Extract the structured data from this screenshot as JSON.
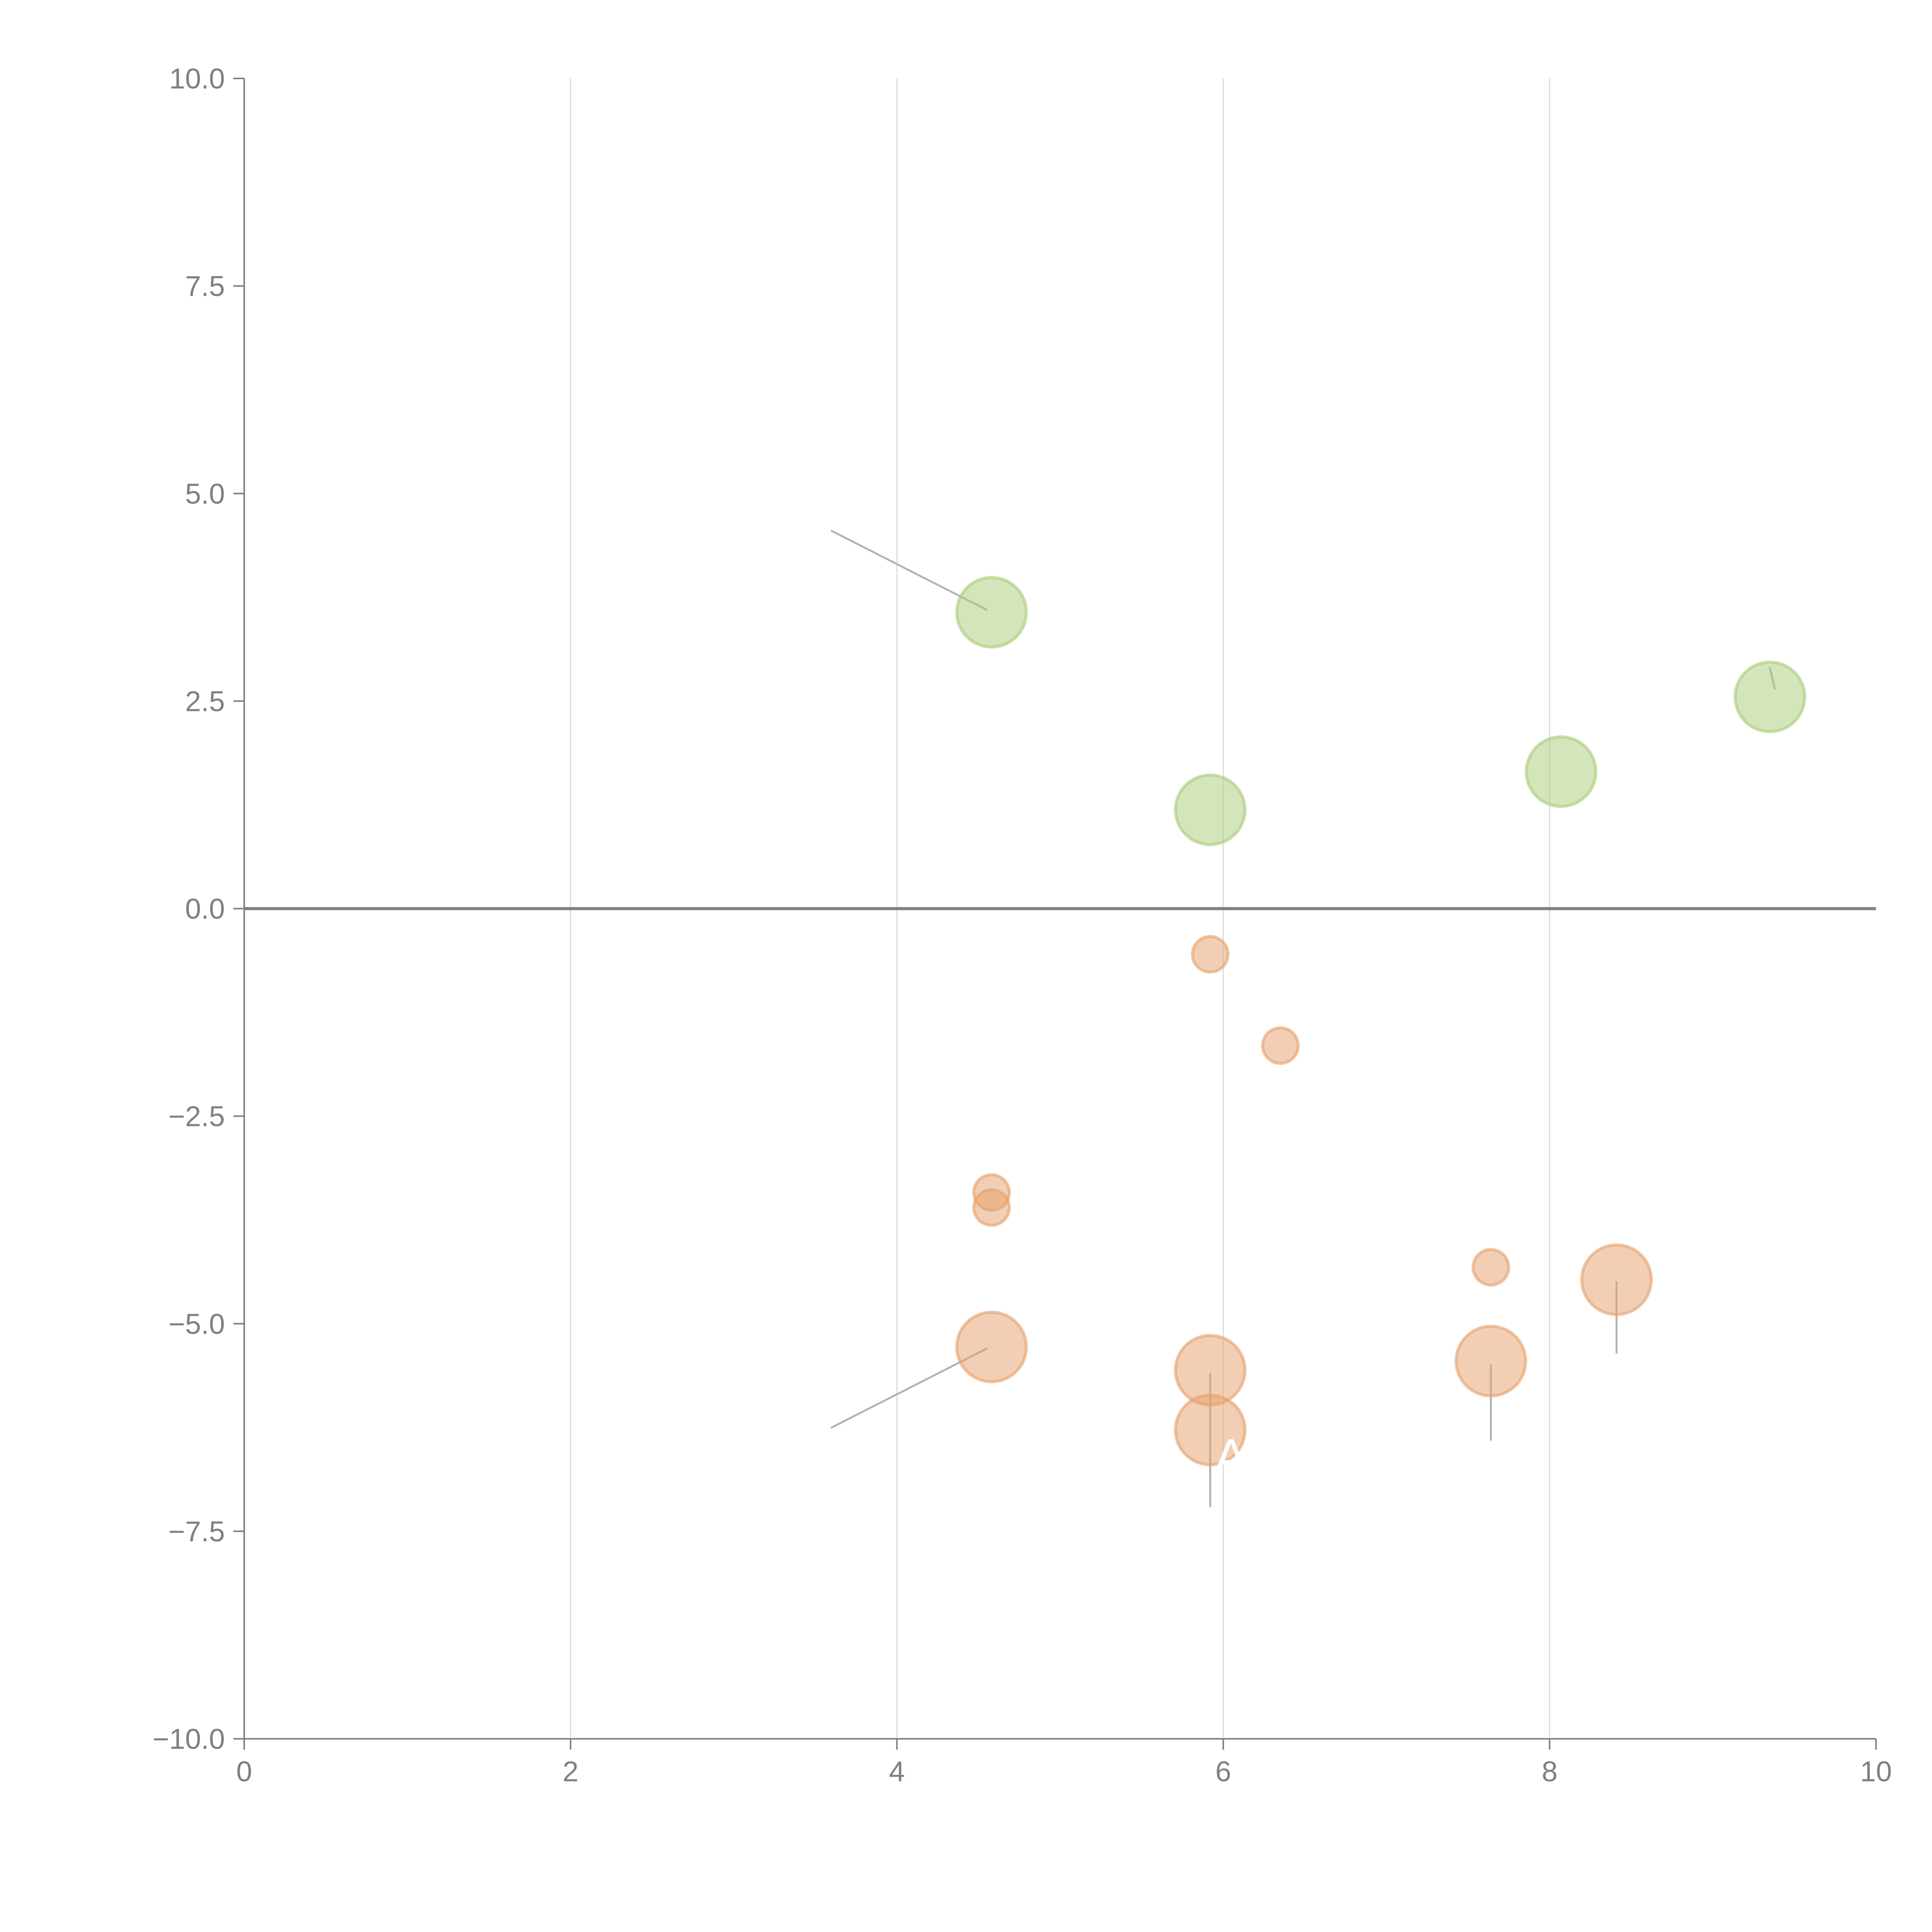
{
  "chart_data": {
    "type": "scatter",
    "title": "",
    "xlabel": "",
    "ylabel": "",
    "xlim": [
      0,
      10
    ],
    "ylim": [
      -10,
      10
    ],
    "xticks": [
      0,
      2,
      4,
      6,
      8,
      10
    ],
    "xtick_labels": [
      "0",
      "2",
      "4",
      "6",
      "8",
      "10"
    ],
    "yticks": [
      10,
      7.5,
      5,
      2.5,
      0,
      -2.5,
      -5,
      -7.5,
      -10
    ],
    "ytick_labels": [
      "10.0",
      "7.5",
      "5.0",
      "2.5",
      "0.0",
      "−2.5",
      "−5.0",
      "−7.5",
      "−10.0"
    ],
    "grid": "vertical",
    "zero_line": true,
    "colors": {
      "positive": "#a9cc78",
      "negative": "#e6a06a",
      "axis": "#808080",
      "leader": "#b3b3b3"
    },
    "series": [
      {
        "name": "positive",
        "points": [
          {
            "x": 4.58,
            "y": 3.57,
            "size": 2
          },
          {
            "x": 5.92,
            "y": 1.19,
            "size": 2
          },
          {
            "x": 8.07,
            "y": 1.65,
            "size": 2
          },
          {
            "x": 9.35,
            "y": 2.55,
            "size": 2
          }
        ]
      },
      {
        "name": "negative",
        "points": [
          {
            "x": 5.92,
            "y": -0.55,
            "size": 1
          },
          {
            "x": 6.35,
            "y": -1.65,
            "size": 1
          },
          {
            "x": 4.58,
            "y": -3.42,
            "size": 1
          },
          {
            "x": 4.58,
            "y": -3.6,
            "size": 1
          },
          {
            "x": 7.64,
            "y": -4.32,
            "size": 1
          },
          {
            "x": 8.41,
            "y": -4.47,
            "size": 2
          },
          {
            "x": 4.58,
            "y": -5.28,
            "size": 2
          },
          {
            "x": 5.92,
            "y": -5.56,
            "size": 2
          },
          {
            "x": 5.92,
            "y": -6.28,
            "size": 2
          },
          {
            "x": 7.64,
            "y": -5.45,
            "size": 2
          }
        ]
      }
    ],
    "leaders": [
      {
        "x1": 3.6,
        "y1": 4.55,
        "x2": 4.55,
        "y2": 3.6
      },
      {
        "x1": 3.6,
        "y1": -6.25,
        "x2": 4.55,
        "y2": -5.3
      },
      {
        "x1": 5.92,
        "y1": -5.6,
        "x2": 5.92,
        "y2": -7.2
      },
      {
        "x1": 7.64,
        "y1": -5.5,
        "x2": 7.64,
        "y2": -6.4
      },
      {
        "x1": 8.41,
        "y1": -4.5,
        "x2": 8.41,
        "y2": -5.35
      },
      {
        "x1": 9.35,
        "y1": 2.9,
        "x2": 9.38,
        "y2": 2.65
      }
    ],
    "annotations": [
      {
        "text": "A",
        "x": 5.92,
        "y": -6.6
      }
    ]
  }
}
